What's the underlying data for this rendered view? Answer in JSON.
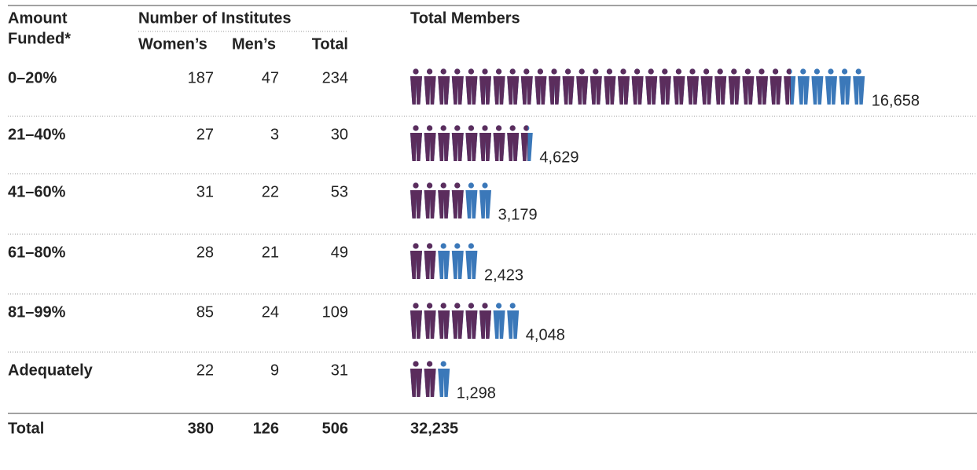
{
  "header": {
    "amount_funded_1": "Amount",
    "amount_funded_2": "Funded*",
    "institutes": "Number of Institutes",
    "women": "Women’s",
    "men": "Men’s",
    "total": "Total",
    "members": "Total Members"
  },
  "rows": [
    {
      "label": "0–20%",
      "women": 187,
      "men": 47,
      "total": 234,
      "members": 16658,
      "members_label": "16,658",
      "women_members": 13750
    },
    {
      "label": "21–40%",
      "women": 27,
      "men": 3,
      "total": 30,
      "members": 4629,
      "members_label": "4,629",
      "women_members": 4250
    },
    {
      "label": "41–60%",
      "women": 31,
      "men": 22,
      "total": 53,
      "members": 3179,
      "members_label": "3,179",
      "women_members": 2000
    },
    {
      "label": "61–80%",
      "women": 28,
      "men": 21,
      "total": 49,
      "members": 2423,
      "members_label": "2,423",
      "women_members": 1000
    },
    {
      "label": "81–99%",
      "women": 85,
      "men": 24,
      "total": 109,
      "members": 4048,
      "members_label": "4,048",
      "women_members": 3000
    },
    {
      "label": "Adequately",
      "women": 22,
      "men": 9,
      "total": 31,
      "members": 1298,
      "members_label": "1,298",
      "women_members": 1000
    }
  ],
  "totals": {
    "label": "Total",
    "women": 380,
    "men": 126,
    "total": 506,
    "members": "32,235"
  },
  "colors": {
    "women": "#5b2d5d",
    "men": "#3b78b9"
  }
}
